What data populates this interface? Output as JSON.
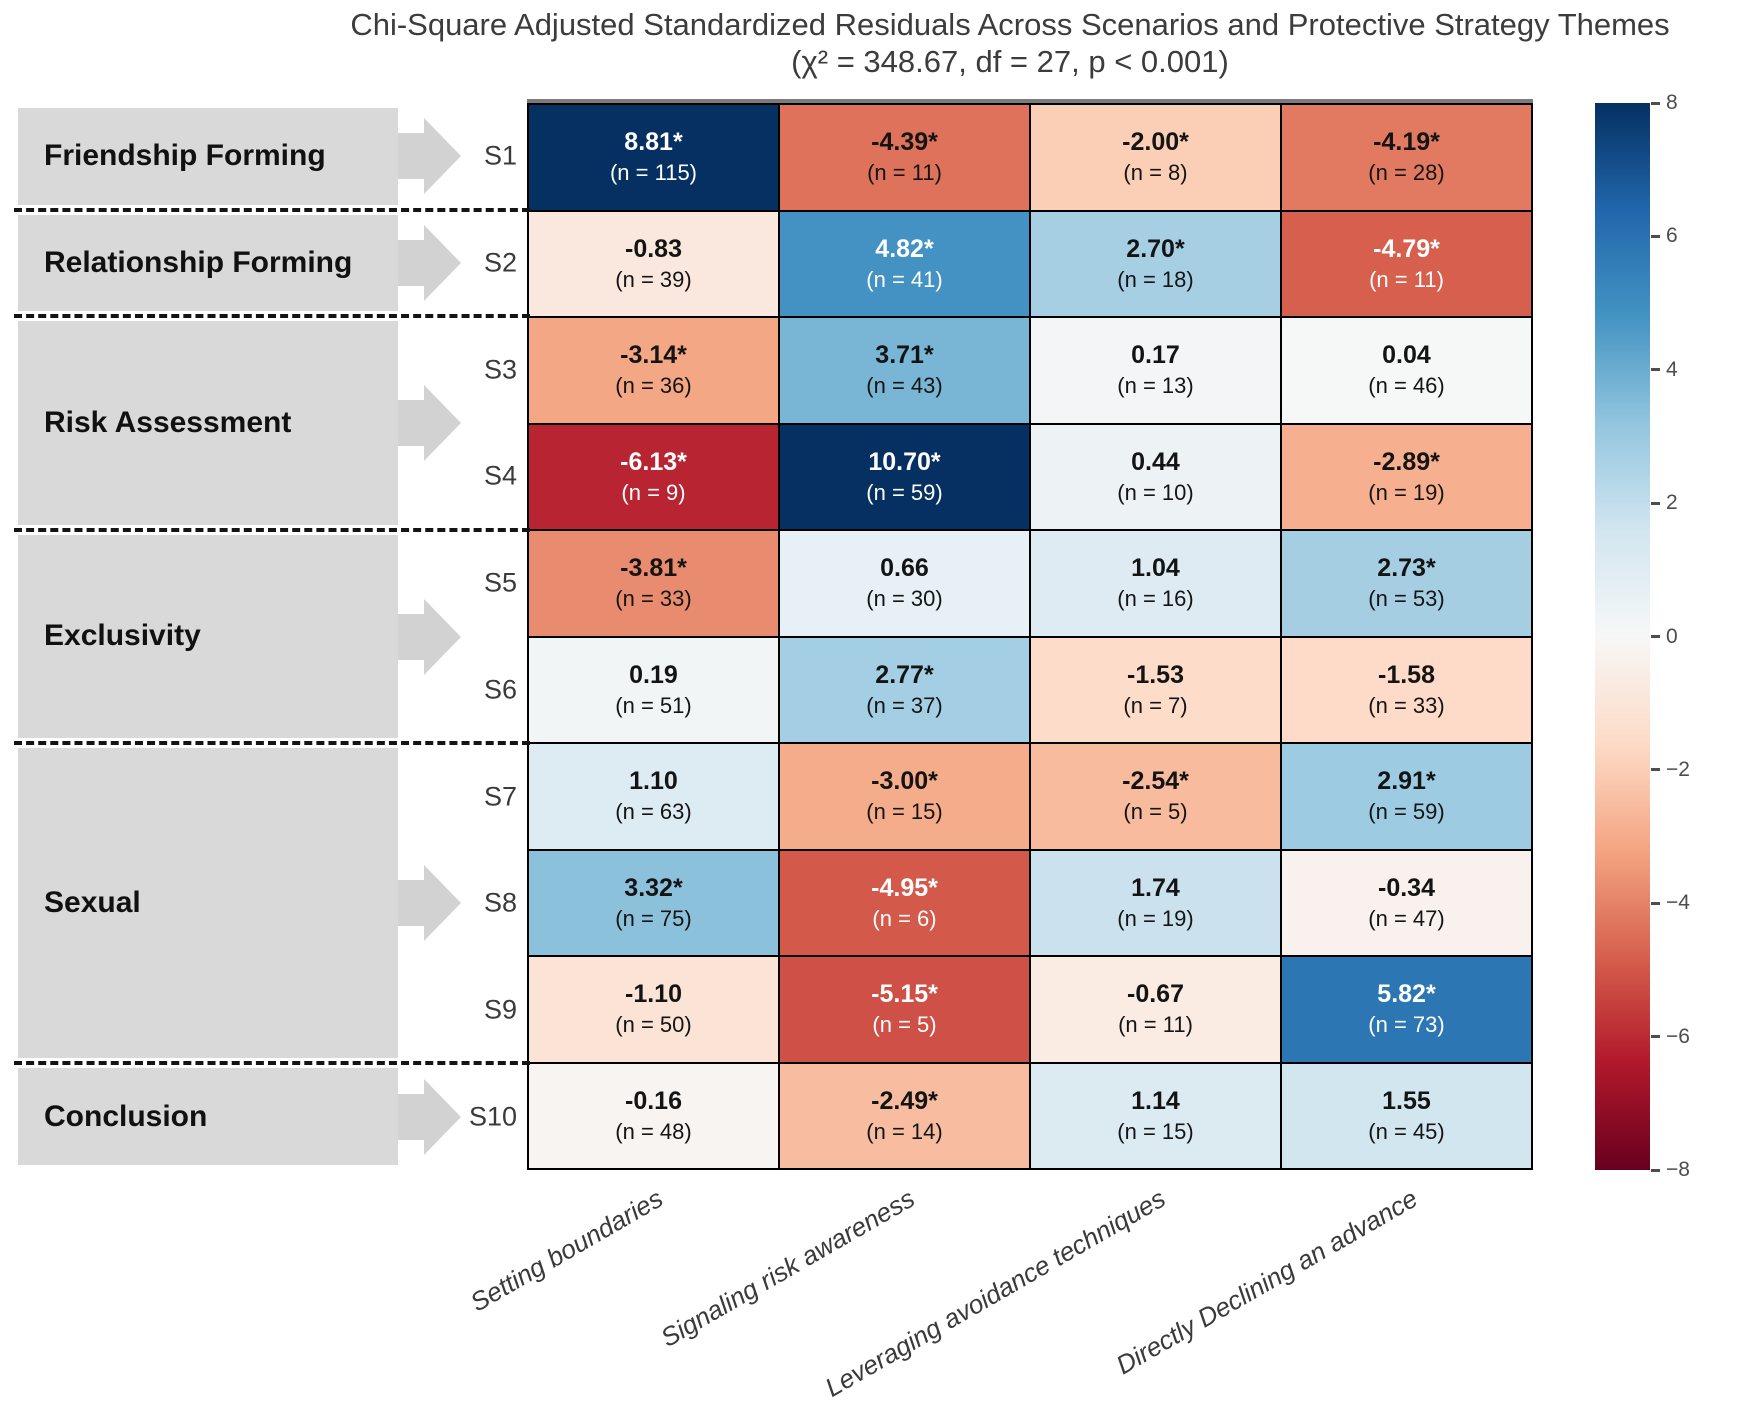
{
  "title": "Chi-Square Adjusted Standardized Residuals Across Scenarios and Protective Strategy Themes",
  "subtitle": "(χ² = 348.67, df = 27, p < 0.001)",
  "colors": {
    "group_box": "#d9d9d9",
    "arrow": "#d2d2d2",
    "cell_text_dark": "#141414",
    "cell_text_light": "#ffffff",
    "axis_text": "#3a3a3a",
    "tick_text": "#4d4d4d"
  },
  "chart_data": {
    "type": "heatmap",
    "title": "Chi-Square Adjusted Standardized Residuals Across Scenarios and Protective Strategy Themes",
    "subtitle": "(χ² = 348.67, df = 27, p < 0.001)",
    "x_categories": [
      "Setting boundaries",
      "Signaling risk awareness",
      "Leveraging avoidance techniques",
      "Directly Declining an advance"
    ],
    "row_ids": [
      "S1",
      "S2",
      "S3",
      "S4",
      "S5",
      "S6",
      "S7",
      "S8",
      "S9",
      "S10"
    ],
    "row_groups": [
      {
        "label": "Friendship Forming",
        "rows": [
          "S1"
        ]
      },
      {
        "label": "Relationship Forming",
        "rows": [
          "S2"
        ]
      },
      {
        "label": "Risk Assessment",
        "rows": [
          "S3",
          "S4"
        ]
      },
      {
        "label": "Exclusivity",
        "rows": [
          "S5",
          "S6"
        ]
      },
      {
        "label": "Sexual",
        "rows": [
          "S7",
          "S8",
          "S9"
        ]
      },
      {
        "label": "Conclusion",
        "rows": [
          "S10"
        ]
      }
    ],
    "significance_marker": "*",
    "cells": [
      [
        {
          "value": 8.81,
          "sig": true,
          "n": 115
        },
        {
          "value": -4.39,
          "sig": true,
          "n": 11
        },
        {
          "value": -2.0,
          "sig": true,
          "n": 8
        },
        {
          "value": -4.19,
          "sig": true,
          "n": 28
        }
      ],
      [
        {
          "value": -0.83,
          "sig": false,
          "n": 39
        },
        {
          "value": 4.82,
          "sig": true,
          "n": 41
        },
        {
          "value": 2.7,
          "sig": true,
          "n": 18
        },
        {
          "value": -4.79,
          "sig": true,
          "n": 11
        }
      ],
      [
        {
          "value": -3.14,
          "sig": true,
          "n": 36
        },
        {
          "value": 3.71,
          "sig": true,
          "n": 43
        },
        {
          "value": 0.17,
          "sig": false,
          "n": 13
        },
        {
          "value": 0.04,
          "sig": false,
          "n": 46
        }
      ],
      [
        {
          "value": -6.13,
          "sig": true,
          "n": 9
        },
        {
          "value": 10.7,
          "sig": true,
          "n": 59
        },
        {
          "value": 0.44,
          "sig": false,
          "n": 10
        },
        {
          "value": -2.89,
          "sig": true,
          "n": 19
        }
      ],
      [
        {
          "value": -3.81,
          "sig": true,
          "n": 33
        },
        {
          "value": 0.66,
          "sig": false,
          "n": 30
        },
        {
          "value": 1.04,
          "sig": false,
          "n": 16
        },
        {
          "value": 2.73,
          "sig": true,
          "n": 53
        }
      ],
      [
        {
          "value": 0.19,
          "sig": false,
          "n": 51
        },
        {
          "value": 2.77,
          "sig": true,
          "n": 37
        },
        {
          "value": -1.53,
          "sig": false,
          "n": 7
        },
        {
          "value": -1.58,
          "sig": false,
          "n": 33
        }
      ],
      [
        {
          "value": 1.1,
          "sig": false,
          "n": 63
        },
        {
          "value": -3.0,
          "sig": true,
          "n": 15
        },
        {
          "value": -2.54,
          "sig": true,
          "n": 5
        },
        {
          "value": 2.91,
          "sig": true,
          "n": 59
        }
      ],
      [
        {
          "value": 3.32,
          "sig": true,
          "n": 75
        },
        {
          "value": -4.95,
          "sig": true,
          "n": 6
        },
        {
          "value": 1.74,
          "sig": false,
          "n": 19
        },
        {
          "value": -0.34,
          "sig": false,
          "n": 47
        }
      ],
      [
        {
          "value": -1.1,
          "sig": false,
          "n": 50
        },
        {
          "value": -5.15,
          "sig": true,
          "n": 5
        },
        {
          "value": -0.67,
          "sig": false,
          "n": 11
        },
        {
          "value": 5.82,
          "sig": true,
          "n": 73
        }
      ],
      [
        {
          "value": -0.16,
          "sig": false,
          "n": 48
        },
        {
          "value": -2.49,
          "sig": true,
          "n": 14
        },
        {
          "value": 1.14,
          "sig": false,
          "n": 15
        },
        {
          "value": 1.55,
          "sig": false,
          "n": 45
        }
      ]
    ],
    "colorbar": {
      "vmin": -8,
      "vmax": 8,
      "tick_values": [
        8,
        6,
        4,
        2,
        0,
        -2,
        -4,
        -6,
        -8
      ],
      "tick_labels": [
        "8",
        "6",
        "4",
        "2",
        "0",
        "−2",
        "−4",
        "−6",
        "−8"
      ],
      "position": "right",
      "colormap": "RdBu",
      "stops_top_to_bottom": [
        "#053061",
        "#2166ac",
        "#4393c3",
        "#92c5de",
        "#d1e5f0",
        "#f7f7f7",
        "#fddbc7",
        "#f4a582",
        "#d6604d",
        "#b2182b",
        "#67001f"
      ]
    },
    "grid": false,
    "legend_position": "right"
  }
}
